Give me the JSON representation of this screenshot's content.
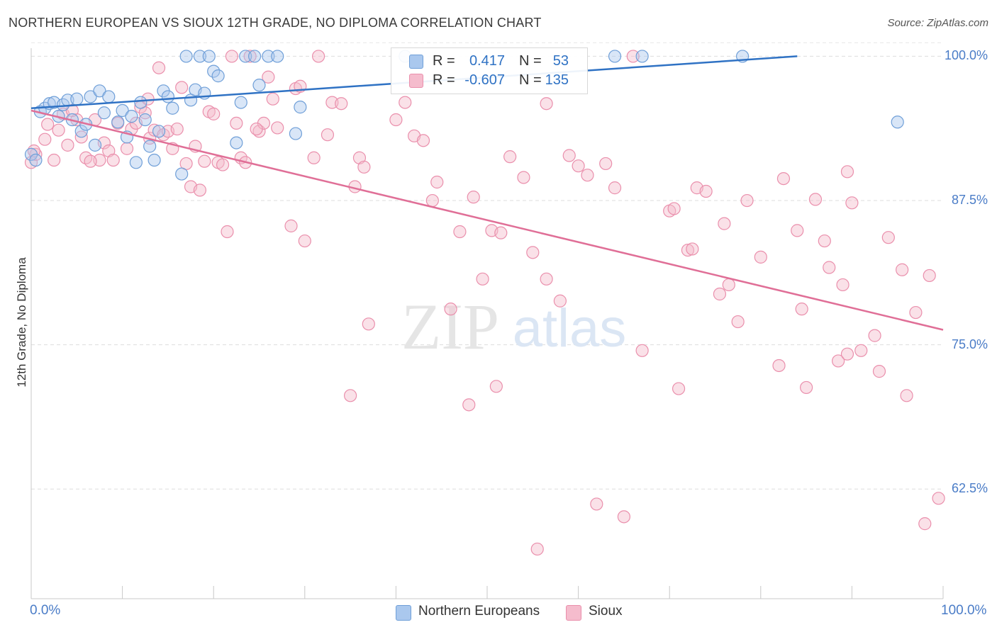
{
  "title": "NORTHERN EUROPEAN VS SIOUX 12TH GRADE, NO DIPLOMA CORRELATION CHART",
  "source": "Source: ZipAtlas.com",
  "watermark": {
    "zip": "ZIP",
    "atlas": "atlas"
  },
  "chart_data": {
    "type": "scatter",
    "ylabel": "12th Grade, No Diploma",
    "xlim": [
      0,
      100
    ],
    "ylim": [
      53,
      101.5
    ],
    "x_tick_labels": [
      "0.0%",
      "100.0%"
    ],
    "y_ticks": [
      {
        "value": 100.0,
        "label": "100.0%"
      },
      {
        "value": 87.5,
        "label": "87.5%"
      },
      {
        "value": 75.0,
        "label": "75.0%"
      },
      {
        "value": 62.5,
        "label": "62.5%"
      }
    ],
    "legend": {
      "rows": [
        {
          "r_label": "R =",
          "r_value": "0.417",
          "n_label": "N =",
          "n_value": "53"
        },
        {
          "r_label": "R =",
          "r_value": "-0.607",
          "n_label": "N =",
          "n_value": "135"
        }
      ]
    },
    "series": [
      {
        "name": "Northern Europeans",
        "color": "#6f9fd8",
        "fill": "#aac8ee",
        "line_color": "#2f72c4",
        "trend": [
          [
            0,
            95.5
          ],
          [
            84,
            100.0
          ]
        ],
        "points": [
          [
            0.0,
            91.5
          ],
          [
            0.5,
            91.0
          ],
          [
            1.0,
            95.2
          ],
          [
            1.5,
            95.5
          ],
          [
            2.0,
            95.9
          ],
          [
            2.5,
            96.0
          ],
          [
            3.0,
            94.8
          ],
          [
            3.5,
            95.8
          ],
          [
            4.0,
            96.2
          ],
          [
            4.5,
            94.5
          ],
          [
            5.0,
            96.3
          ],
          [
            5.5,
            93.5
          ],
          [
            6.0,
            94.1
          ],
          [
            6.5,
            96.5
          ],
          [
            7.0,
            92.3
          ],
          [
            7.5,
            97.0
          ],
          [
            8.0,
            95.1
          ],
          [
            8.5,
            96.5
          ],
          [
            9.5,
            94.3
          ],
          [
            10.0,
            95.3
          ],
          [
            10.5,
            93.0
          ],
          [
            11.0,
            94.8
          ],
          [
            11.5,
            90.8
          ],
          [
            12.0,
            96.0
          ],
          [
            12.5,
            94.5
          ],
          [
            13.0,
            92.2
          ],
          [
            13.5,
            91.0
          ],
          [
            14.0,
            93.5
          ],
          [
            14.5,
            97.0
          ],
          [
            15.0,
            96.5
          ],
          [
            15.5,
            95.5
          ],
          [
            16.5,
            89.8
          ],
          [
            17.0,
            100.0
          ],
          [
            17.5,
            96.2
          ],
          [
            18.0,
            97.1
          ],
          [
            18.5,
            100.0
          ],
          [
            19.0,
            96.8
          ],
          [
            19.5,
            100.0
          ],
          [
            20.0,
            98.7
          ],
          [
            20.5,
            98.3
          ],
          [
            22.5,
            92.5
          ],
          [
            23.0,
            96.0
          ],
          [
            23.5,
            100.0
          ],
          [
            24.5,
            100.0
          ],
          [
            25.0,
            97.5
          ],
          [
            26.0,
            100.0
          ],
          [
            27.0,
            100.0
          ],
          [
            29.0,
            93.3
          ],
          [
            29.5,
            95.6
          ],
          [
            41.0,
            100.0
          ],
          [
            64.0,
            100.0
          ],
          [
            67.0,
            100.0
          ],
          [
            78.0,
            100.0
          ],
          [
            95.0,
            94.3
          ]
        ]
      },
      {
        "name": "Sioux",
        "color": "#ea8fac",
        "fill": "#f5bccd",
        "line_color": "#e06f97",
        "trend": [
          [
            0,
            95.3
          ],
          [
            100,
            76.3
          ]
        ],
        "points": [
          [
            0.0,
            90.8
          ],
          [
            0.5,
            91.5
          ],
          [
            1.5,
            92.8
          ],
          [
            2.5,
            91.0
          ],
          [
            3.0,
            93.6
          ],
          [
            3.5,
            95.0
          ],
          [
            4.0,
            92.3
          ],
          [
            5.0,
            94.5
          ],
          [
            5.5,
            93.0
          ],
          [
            6.0,
            91.2
          ],
          [
            7.0,
            94.5
          ],
          [
            7.5,
            91.0
          ],
          [
            8.0,
            92.5
          ],
          [
            8.5,
            91.8
          ],
          [
            9.0,
            91.0
          ],
          [
            9.5,
            94.2
          ],
          [
            10.5,
            92.0
          ],
          [
            11.0,
            93.7
          ],
          [
            11.5,
            94.2
          ],
          [
            12.0,
            95.6
          ],
          [
            12.5,
            95.1
          ],
          [
            13.0,
            92.9
          ],
          [
            13.5,
            93.6
          ],
          [
            14.0,
            99.0
          ],
          [
            14.5,
            93.2
          ],
          [
            15.0,
            93.5
          ],
          [
            15.5,
            92.0
          ],
          [
            16.0,
            93.7
          ],
          [
            16.5,
            97.3
          ],
          [
            17.0,
            90.7
          ],
          [
            17.5,
            88.7
          ],
          [
            18.0,
            92.2
          ],
          [
            18.5,
            88.4
          ],
          [
            19.0,
            90.9
          ],
          [
            19.5,
            95.2
          ],
          [
            20.0,
            95.0
          ],
          [
            20.5,
            90.8
          ],
          [
            21.0,
            90.6
          ],
          [
            21.5,
            84.8
          ],
          [
            22.0,
            100.0
          ],
          [
            22.5,
            94.2
          ],
          [
            23.0,
            91.2
          ],
          [
            23.5,
            90.8
          ],
          [
            24.0,
            100.0
          ],
          [
            25.0,
            93.5
          ],
          [
            25.5,
            94.2
          ],
          [
            26.0,
            98.2
          ],
          [
            26.5,
            96.3
          ],
          [
            27.0,
            93.8
          ],
          [
            28.5,
            85.3
          ],
          [
            29.0,
            97.2
          ],
          [
            29.5,
            97.4
          ],
          [
            30.0,
            84.0
          ],
          [
            31.0,
            91.2
          ],
          [
            31.5,
            100.0
          ],
          [
            32.5,
            93.2
          ],
          [
            33.0,
            96.0
          ],
          [
            34.0,
            95.9
          ],
          [
            35.0,
            70.6
          ],
          [
            35.5,
            88.7
          ],
          [
            36.0,
            91.2
          ],
          [
            36.5,
            90.4
          ],
          [
            37.0,
            76.8
          ],
          [
            40.0,
            94.5
          ],
          [
            41.0,
            96.0
          ],
          [
            42.0,
            93.1
          ],
          [
            43.0,
            92.7
          ],
          [
            44.0,
            87.5
          ],
          [
            44.5,
            89.1
          ],
          [
            46.0,
            78.1
          ],
          [
            47.0,
            84.8
          ],
          [
            48.0,
            69.8
          ],
          [
            48.5,
            87.8
          ],
          [
            49.5,
            80.7
          ],
          [
            50.5,
            84.9
          ],
          [
            51.0,
            71.4
          ],
          [
            51.5,
            84.7
          ],
          [
            52.5,
            91.3
          ],
          [
            54.0,
            89.5
          ],
          [
            55.0,
            83.0
          ],
          [
            55.5,
            57.3
          ],
          [
            56.5,
            95.9
          ],
          [
            56.5,
            80.7
          ],
          [
            58.0,
            78.8
          ],
          [
            59.0,
            91.4
          ],
          [
            60.0,
            90.5
          ],
          [
            61.0,
            89.7
          ],
          [
            62.0,
            61.2
          ],
          [
            63.0,
            90.7
          ],
          [
            64.0,
            88.6
          ],
          [
            65.0,
            60.1
          ],
          [
            66.0,
            100.0
          ],
          [
            67.0,
            74.5
          ],
          [
            70.0,
            86.6
          ],
          [
            70.5,
            86.8
          ],
          [
            71.0,
            71.2
          ],
          [
            72.0,
            83.2
          ],
          [
            72.5,
            83.3
          ],
          [
            73.0,
            88.6
          ],
          [
            74.0,
            88.3
          ],
          [
            75.5,
            79.4
          ],
          [
            76.0,
            85.5
          ],
          [
            76.5,
            80.2
          ],
          [
            77.5,
            77.0
          ],
          [
            78.5,
            87.5
          ],
          [
            80.0,
            82.6
          ],
          [
            82.0,
            73.2
          ],
          [
            82.5,
            89.4
          ],
          [
            84.0,
            84.9
          ],
          [
            84.5,
            78.1
          ],
          [
            85.0,
            71.3
          ],
          [
            86.0,
            87.6
          ],
          [
            87.0,
            84.0
          ],
          [
            87.5,
            81.7
          ],
          [
            88.5,
            73.6
          ],
          [
            89.0,
            80.2
          ],
          [
            89.5,
            90.0
          ],
          [
            89.5,
            74.2
          ],
          [
            90.0,
            87.3
          ],
          [
            91.0,
            74.5
          ],
          [
            92.5,
            75.8
          ],
          [
            93.0,
            72.7
          ],
          [
            94.0,
            84.3
          ],
          [
            95.5,
            81.5
          ],
          [
            96.0,
            70.6
          ],
          [
            97.0,
            77.8
          ],
          [
            98.0,
            59.5
          ],
          [
            98.5,
            81.0
          ],
          [
            99.5,
            61.7
          ],
          [
            0.3,
            91.8
          ],
          [
            1.8,
            94.1
          ],
          [
            4.5,
            95.3
          ],
          [
            6.5,
            90.9
          ],
          [
            12.8,
            96.3
          ],
          [
            24.7,
            93.7
          ]
        ]
      }
    ]
  }
}
